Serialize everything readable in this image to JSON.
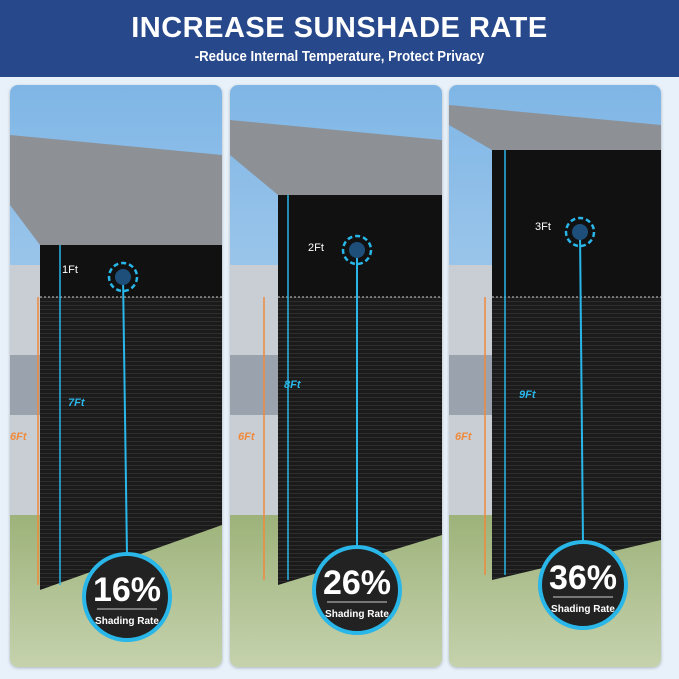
{
  "header": {
    "title": "INCREASE SUNSHADE RATE",
    "subtitle": "-Reduce Internal Temperature, Protect Privacy"
  },
  "colors": {
    "header": "#27488a",
    "accent_cyan": "#29b6e8",
    "accent_orange": "#f08a3c",
    "shade": "#151515"
  },
  "panels": [
    {
      "top_label": "1Ft",
      "total_label": "7Ft",
      "base_label": "6Ft",
      "rate": "16%",
      "rate_label": "Shading Rate"
    },
    {
      "top_label": "2Ft",
      "total_label": "8Ft",
      "base_label": "6Ft",
      "rate": "26%",
      "rate_label": "Shading Rate"
    },
    {
      "top_label": "3Ft",
      "total_label": "9Ft",
      "base_label": "6Ft",
      "rate": "36%",
      "rate_label": "Shading Rate"
    }
  ]
}
